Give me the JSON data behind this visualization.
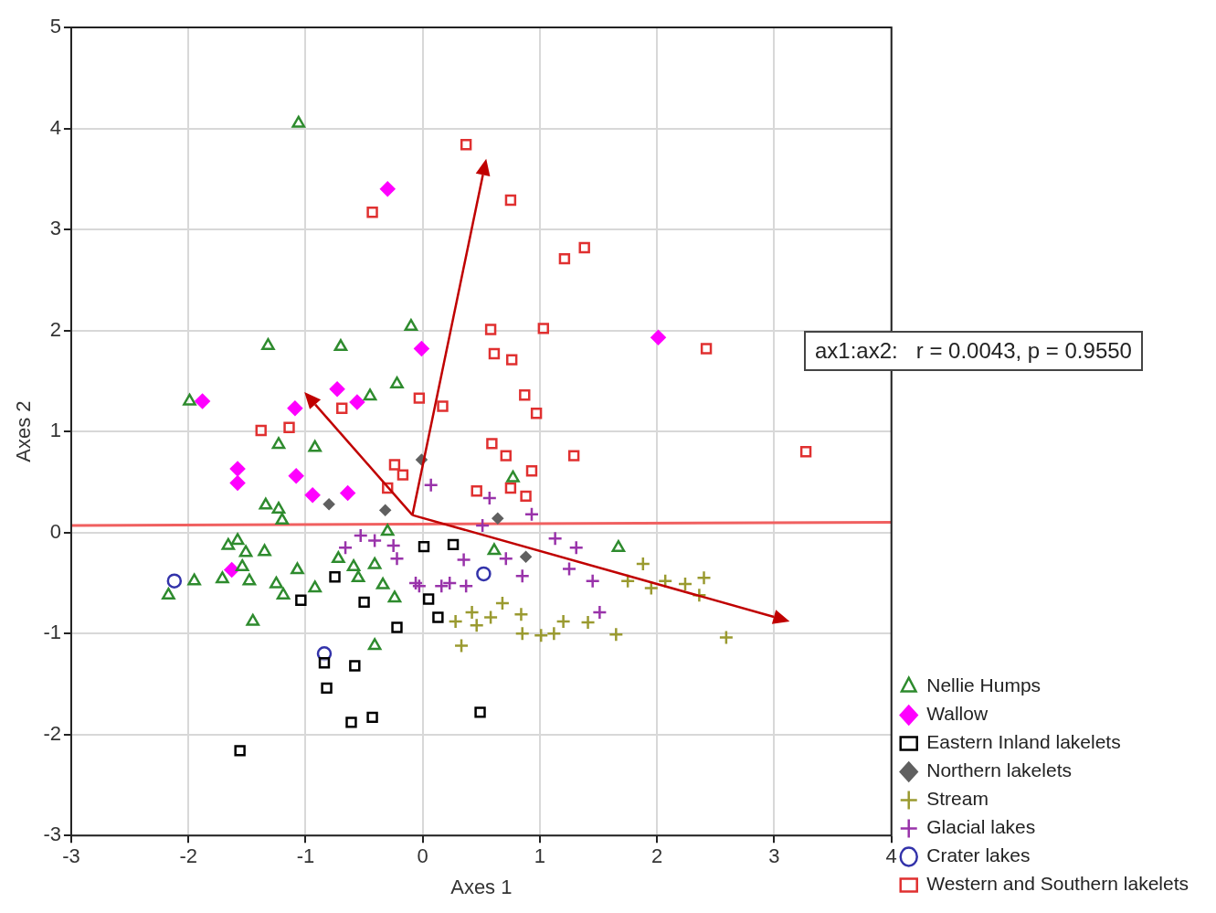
{
  "chart_data": {
    "type": "scatter",
    "xlabel": "Axes 1",
    "ylabel": "Axes 2",
    "xlim": [
      -3,
      4
    ],
    "xticks": [
      -3,
      -2,
      -1,
      0,
      1,
      2,
      3,
      4
    ],
    "ylim": [
      -3,
      5
    ],
    "yticks": [
      -3,
      -2,
      -1,
      0,
      1,
      2,
      3,
      4,
      5
    ],
    "grid": true,
    "legend": "bottom right",
    "annotations": [
      "ax1:ax2:   r = 0.0043, p = 0.9550"
    ],
    "series": [
      {
        "name": "Nellie Humps",
        "color": "#2e8b2e",
        "marker": "triangle",
        "x": [
          -1.06,
          -0.1,
          -1.32,
          -0.7,
          -1.99,
          -0.22,
          -0.45,
          -1.23,
          -0.92,
          -1.34,
          -1.23,
          -1.2,
          0.77,
          -0.3,
          1.67,
          0.61,
          -1.66,
          -1.58,
          -1.51,
          -1.35,
          -1.95,
          -1.71,
          -1.54,
          -1.48,
          -1.07,
          -1.25,
          -1.19,
          -0.92,
          -0.72,
          -0.59,
          -0.55,
          -0.41,
          -0.34,
          -0.24,
          -1.45,
          -0.41,
          -2.17
        ],
        "values": [
          4.05,
          2.04,
          1.85,
          1.84,
          1.3,
          1.47,
          1.35,
          0.87,
          0.84,
          0.27,
          0.23,
          0.12,
          0.54,
          0.01,
          -0.15,
          -0.18,
          -0.13,
          -0.08,
          -0.2,
          -0.19,
          -0.48,
          -0.46,
          -0.34,
          -0.48,
          -0.37,
          -0.51,
          -0.62,
          -0.55,
          -0.26,
          -0.34,
          -0.45,
          -0.32,
          -0.52,
          -0.65,
          -0.88,
          -1.12,
          -0.62
        ]
      },
      {
        "name": "Wallow",
        "color": "#ff00ff",
        "marker": "diamond",
        "x": [
          -0.3,
          -0.01,
          2.01,
          -1.88,
          -0.73,
          -1.09,
          -0.56,
          -1.58,
          -1.58,
          -1.08,
          -0.94,
          -0.64,
          -1.63
        ],
        "values": [
          3.4,
          1.82,
          1.93,
          1.3,
          1.42,
          1.23,
          1.29,
          0.63,
          0.49,
          0.56,
          0.37,
          0.39,
          -0.37
        ]
      },
      {
        "name": "Eastern Inland lakelets",
        "color": "#000000",
        "marker": "square",
        "x": [
          -0.75,
          -1.04,
          -0.5,
          -0.22,
          -0.84,
          -0.58,
          -0.82,
          -0.61,
          -0.43,
          -1.56,
          0.49,
          0.01,
          0.26,
          0.05,
          0.13
        ],
        "values": [
          -0.44,
          -0.67,
          -0.69,
          -0.94,
          -1.29,
          -1.32,
          -1.54,
          -1.88,
          -1.83,
          -2.16,
          -1.78,
          -0.14,
          -0.12,
          -0.66,
          -0.84
        ]
      },
      {
        "name": "Northern lakelets",
        "color": "#606060",
        "marker": "diamond",
        "x": [
          -0.8,
          -0.32,
          -0.01,
          0.64,
          0.88
        ],
        "values": [
          0.28,
          0.22,
          0.72,
          0.14,
          -0.24
        ]
      },
      {
        "name": "Stream",
        "color": "#9a9a30",
        "marker": "cross",
        "x": [
          0.68,
          0.42,
          0.58,
          0.84,
          0.28,
          0.46,
          1.2,
          1.41,
          0.85,
          1.01,
          1.12,
          1.65,
          0.33,
          2.59,
          1.88,
          1.75,
          1.95,
          2.07,
          2.24,
          2.4,
          2.36
        ],
        "values": [
          -0.7,
          -0.79,
          -0.84,
          -0.81,
          -0.88,
          -0.92,
          -0.88,
          -0.89,
          -1.0,
          -1.02,
          -1.0,
          -1.01,
          -1.12,
          -1.04,
          -0.31,
          -0.48,
          -0.55,
          -0.48,
          -0.51,
          -0.45,
          -0.62
        ]
      },
      {
        "name": "Glacial lakes",
        "color": "#9933aa",
        "marker": "cross",
        "x": [
          1.13,
          1.31,
          1.25,
          1.45,
          1.51,
          0.93,
          0.35,
          0.71,
          0.85,
          0.51,
          0.57,
          -0.22,
          -0.03,
          0.23,
          0.37,
          -0.66,
          -0.53,
          -0.41,
          -0.25,
          -0.06,
          0.16,
          0.07
        ],
        "values": [
          -0.06,
          -0.15,
          -0.36,
          -0.48,
          -0.79,
          0.18,
          -0.27,
          -0.26,
          -0.43,
          0.07,
          0.34,
          -0.26,
          -0.53,
          -0.5,
          -0.53,
          -0.15,
          -0.03,
          -0.08,
          -0.13,
          -0.5,
          -0.53,
          0.47
        ]
      },
      {
        "name": "Crater lakes",
        "color": "#3333aa",
        "marker": "circle",
        "x": [
          -2.12,
          -0.84,
          0.52
        ],
        "values": [
          -0.48,
          -1.2,
          -0.41
        ]
      },
      {
        "name": "Western and Southern lakelets",
        "color": "#e03030",
        "marker": "square",
        "x": [
          0.37,
          -0.43,
          0.75,
          1.38,
          1.21,
          0.58,
          1.03,
          2.42,
          0.61,
          0.76,
          -0.03,
          0.17,
          0.87,
          0.97,
          -0.69,
          -1.38,
          -1.14,
          0.59,
          0.71,
          1.29,
          3.27,
          -0.24,
          -0.17,
          0.93,
          0.46,
          0.75,
          0.88,
          -0.3
        ],
        "values": [
          3.84,
          3.17,
          3.29,
          2.82,
          2.71,
          2.01,
          2.02,
          1.82,
          1.77,
          1.71,
          1.33,
          1.25,
          1.36,
          1.18,
          1.23,
          1.01,
          1.04,
          0.88,
          0.76,
          0.76,
          0.8,
          0.67,
          0.57,
          0.61,
          0.41,
          0.44,
          0.36,
          0.44
        ]
      },
      {
        "type": "line",
        "color": "#f06060",
        "marker": "none",
        "x": [
          -3,
          4
        ],
        "values": [
          0.07,
          0.1
        ]
      }
    ]
  }
}
